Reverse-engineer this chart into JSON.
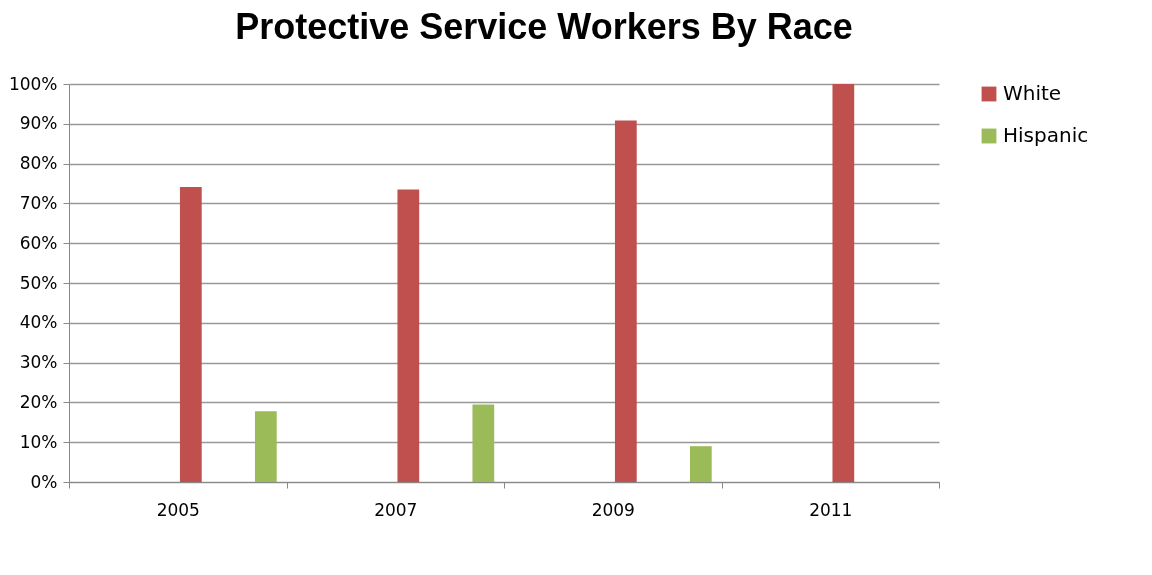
{
  "chart_data": {
    "type": "bar",
    "title": "Protective Service Workers By Race",
    "categories": [
      "2005",
      "2007",
      "2009",
      "2011"
    ],
    "series": [
      {
        "name": "White",
        "color": "#c0504d",
        "values": [
          74.1,
          73.5,
          90.8,
          100
        ]
      },
      {
        "name": "Hispanic",
        "color": "#9bbb59",
        "values": [
          17.8,
          19.5,
          9.0,
          null
        ]
      }
    ],
    "ylim": [
      0,
      100
    ],
    "yticks": [
      {
        "value": 0,
        "label": "0%"
      },
      {
        "value": 10,
        "label": "10%"
      },
      {
        "value": 20,
        "label": "20%"
      },
      {
        "value": 30,
        "label": "30%"
      },
      {
        "value": 40,
        "label": "40%"
      },
      {
        "value": 50,
        "label": "50%"
      },
      {
        "value": 60,
        "label": "60%"
      },
      {
        "value": 70,
        "label": "70%"
      },
      {
        "value": 80,
        "label": "80%"
      },
      {
        "value": 90,
        "label": "90%"
      },
      {
        "value": 100,
        "label": "100%"
      }
    ],
    "grid": "y",
    "legend": "right"
  }
}
